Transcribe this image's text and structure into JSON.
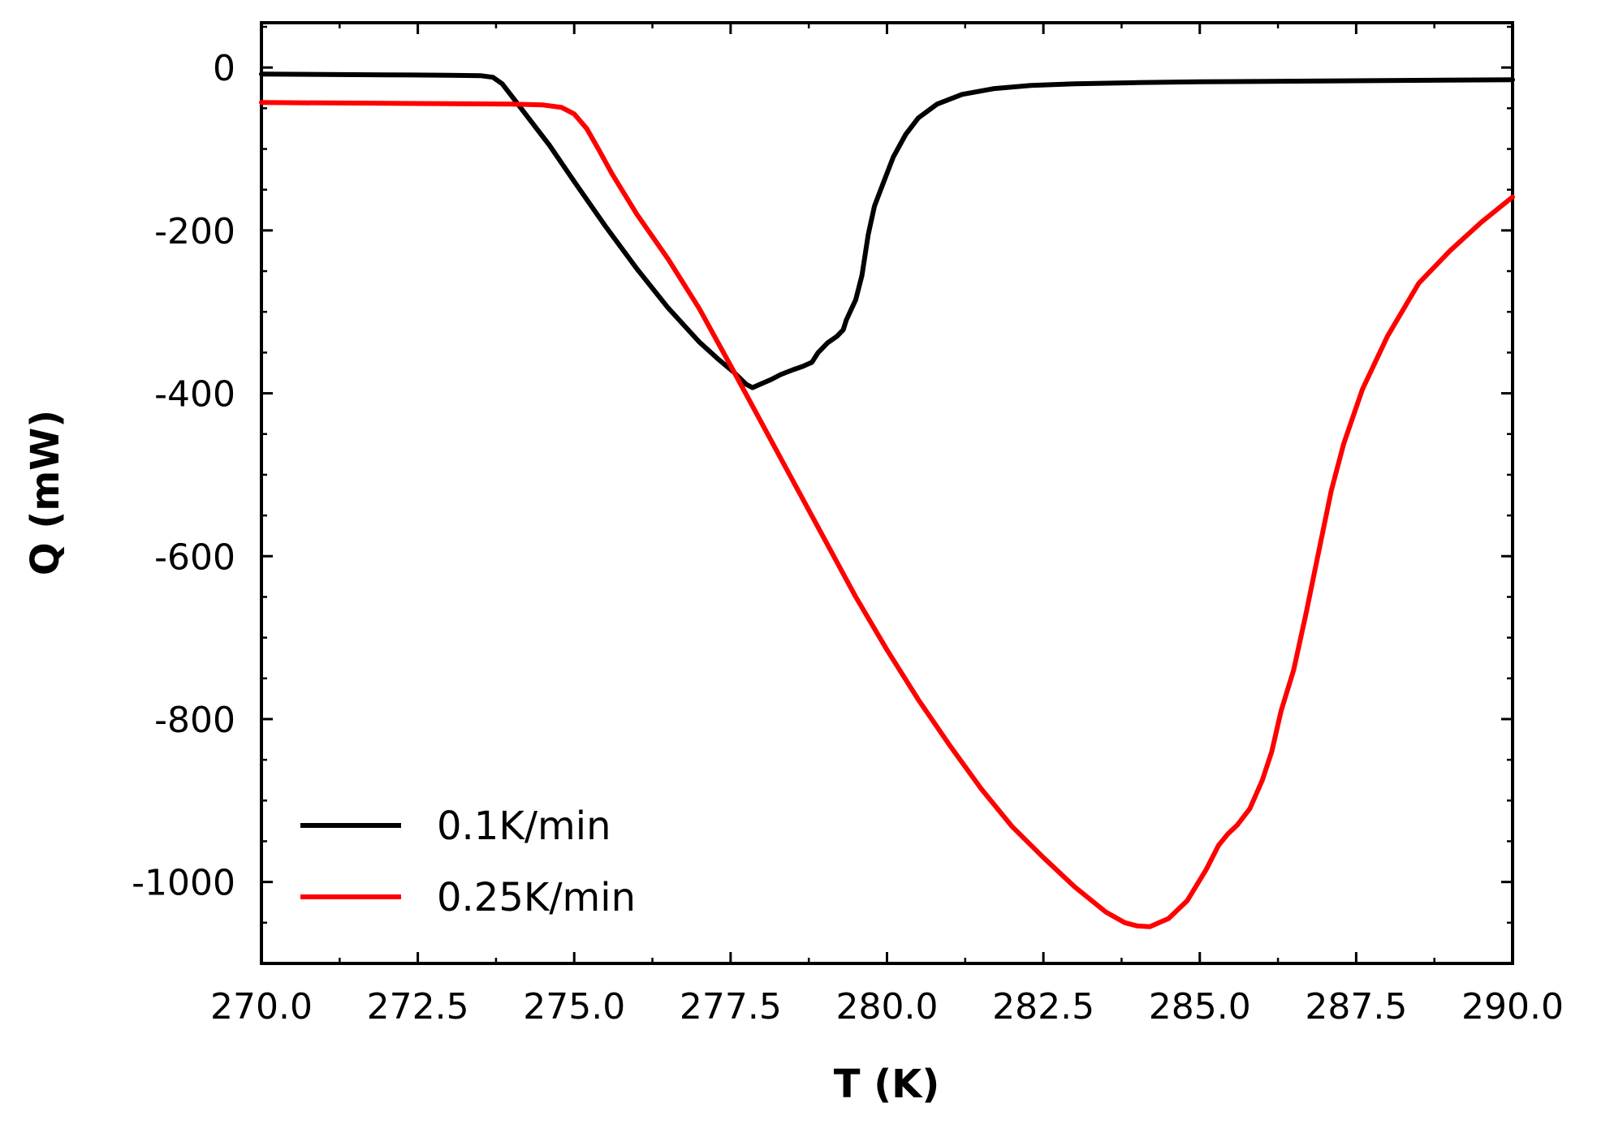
{
  "chart_data": {
    "type": "line",
    "title": "",
    "xlabel": "T (K)",
    "ylabel": "Q (mW)",
    "xlim": [
      270.0,
      290.0
    ],
    "ylim": [
      -1100,
      55
    ],
    "x_ticks": [
      "270.0",
      "272.5",
      "275.0",
      "277.5",
      "280.0",
      "282.5",
      "285.0",
      "287.5",
      "290.0"
    ],
    "y_ticks": [
      {
        "value": 0,
        "label": "0"
      },
      {
        "value": -200,
        "label": "-200"
      },
      {
        "value": -400,
        "label": "-400"
      },
      {
        "value": -600,
        "label": "-600"
      },
      {
        "value": -800,
        "label": "-800"
      },
      {
        "value": -1000,
        "label": "-1000"
      }
    ],
    "grid": false,
    "legend_position": "bottom-left",
    "series": [
      {
        "name": "0.1K/min",
        "color": "#000000",
        "points": [
          [
            270.0,
            -8
          ],
          [
            271.0,
            -8.5
          ],
          [
            272.0,
            -9
          ],
          [
            273.0,
            -9.5
          ],
          [
            273.5,
            -10
          ],
          [
            273.7,
            -12
          ],
          [
            273.85,
            -20
          ],
          [
            274.0,
            -35
          ],
          [
            274.2,
            -55
          ],
          [
            274.4,
            -75
          ],
          [
            274.6,
            -95
          ],
          [
            275.0,
            -140
          ],
          [
            275.5,
            -195
          ],
          [
            276.0,
            -247
          ],
          [
            276.5,
            -295
          ],
          [
            277.0,
            -337
          ],
          [
            277.3,
            -358
          ],
          [
            277.55,
            -374
          ],
          [
            277.75,
            -389
          ],
          [
            277.85,
            -393
          ],
          [
            278.0,
            -388
          ],
          [
            278.15,
            -383
          ],
          [
            278.3,
            -377
          ],
          [
            278.5,
            -371
          ],
          [
            278.65,
            -367
          ],
          [
            278.8,
            -362
          ],
          [
            278.9,
            -350
          ],
          [
            279.05,
            -338
          ],
          [
            279.2,
            -330
          ],
          [
            279.3,
            -322
          ],
          [
            279.35,
            -310
          ],
          [
            279.5,
            -285
          ],
          [
            279.6,
            -255
          ],
          [
            279.7,
            -205
          ],
          [
            279.8,
            -170
          ],
          [
            279.95,
            -140
          ],
          [
            280.1,
            -110
          ],
          [
            280.3,
            -82
          ],
          [
            280.5,
            -62
          ],
          [
            280.8,
            -45
          ],
          [
            281.2,
            -33
          ],
          [
            281.7,
            -26
          ],
          [
            282.3,
            -22
          ],
          [
            283.0,
            -20
          ],
          [
            284.0,
            -18.5
          ],
          [
            285.0,
            -17.5
          ],
          [
            287.0,
            -16.5
          ],
          [
            290.0,
            -15
          ]
        ]
      },
      {
        "name": "0.25K/min",
        "color": "#ff0000",
        "points": [
          [
            270.0,
            -43
          ],
          [
            271.0,
            -43.5
          ],
          [
            272.0,
            -44
          ],
          [
            273.0,
            -44.5
          ],
          [
            274.0,
            -45
          ],
          [
            274.5,
            -46
          ],
          [
            274.8,
            -49
          ],
          [
            275.0,
            -57
          ],
          [
            275.2,
            -75
          ],
          [
            275.4,
            -102
          ],
          [
            275.6,
            -130
          ],
          [
            276.0,
            -180
          ],
          [
            276.5,
            -235
          ],
          [
            277.0,
            -296
          ],
          [
            277.5,
            -366
          ],
          [
            278.0,
            -437
          ],
          [
            278.5,
            -508
          ],
          [
            279.0,
            -579
          ],
          [
            279.5,
            -650
          ],
          [
            280.0,
            -715
          ],
          [
            280.5,
            -776
          ],
          [
            281.0,
            -832
          ],
          [
            281.5,
            -885
          ],
          [
            282.0,
            -932
          ],
          [
            282.5,
            -970
          ],
          [
            283.0,
            -1006
          ],
          [
            283.5,
            -1037
          ],
          [
            283.8,
            -1050
          ],
          [
            284.0,
            -1054
          ],
          [
            284.2,
            -1055
          ],
          [
            284.5,
            -1045
          ],
          [
            284.8,
            -1023
          ],
          [
            285.1,
            -985
          ],
          [
            285.3,
            -955
          ],
          [
            285.45,
            -941
          ],
          [
            285.6,
            -930
          ],
          [
            285.8,
            -910
          ],
          [
            286.0,
            -875
          ],
          [
            286.15,
            -840
          ],
          [
            286.3,
            -790
          ],
          [
            286.5,
            -740
          ],
          [
            286.7,
            -670
          ],
          [
            286.9,
            -595
          ],
          [
            287.1,
            -520
          ],
          [
            287.3,
            -462
          ],
          [
            287.6,
            -395
          ],
          [
            288.0,
            -330
          ],
          [
            288.5,
            -265
          ],
          [
            289.0,
            -225
          ],
          [
            289.5,
            -190
          ],
          [
            290.0,
            -159
          ]
        ]
      }
    ]
  }
}
